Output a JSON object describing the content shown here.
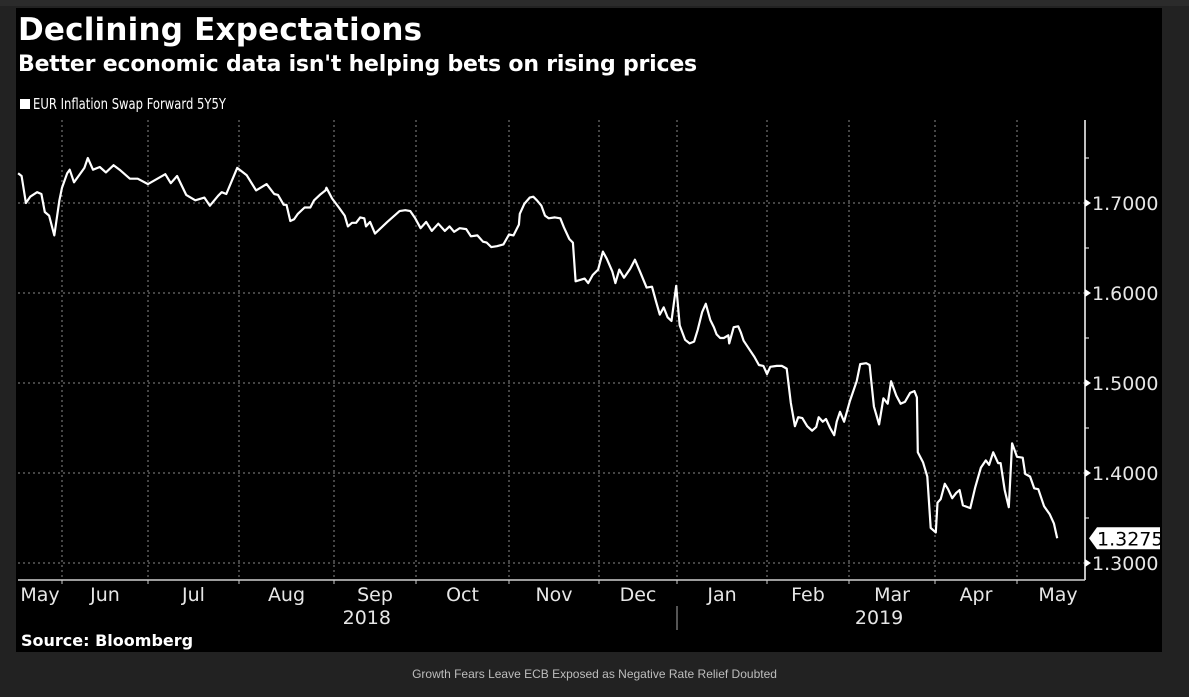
{
  "page": {
    "caption": "Growth Fears Leave ECB Exposed as Negative Rate Relief Doubted",
    "source": "Source: Bloomberg"
  },
  "colors": {
    "background": "#222222",
    "panel": "#000000",
    "line": "#ffffff",
    "grid": "#8a8a8a"
  },
  "chart_data": {
    "type": "line",
    "title": "Declining Expectations",
    "subtitle": "Better economic data isn't helping bets on rising prices",
    "xlabel": "",
    "ylabel": "",
    "legend": {
      "position": "top-left",
      "entries": [
        "EUR Inflation Swap Forward 5Y5Y"
      ]
    },
    "grid": true,
    "ylim": [
      1.28,
      1.79
    ],
    "y_ticks": [
      1.3,
      1.4,
      1.5,
      1.6,
      1.7
    ],
    "y_tick_labels": [
      "1.3000",
      "1.4000",
      "1.5000",
      "1.6000",
      "1.7000"
    ],
    "y_minor_ticks": [
      1.35,
      1.45,
      1.55,
      1.65,
      1.75
    ],
    "x_unit": "months since 2018-06-01",
    "xlim": [
      -0.51,
      11.55
    ],
    "x_month_labels": [
      {
        "label": "May",
        "t": -0.5
      },
      {
        "label": "Jun",
        "t": 0.5
      },
      {
        "label": "Jul",
        "t": 1.5
      },
      {
        "label": "Aug",
        "t": 2.5
      },
      {
        "label": "Sep",
        "t": 3.5
      },
      {
        "label": "Oct",
        "t": 4.5
      },
      {
        "label": "Nov",
        "t": 5.5
      },
      {
        "label": "Dec",
        "t": 6.5
      },
      {
        "label": "Jan",
        "t": 7.5
      },
      {
        "label": "Feb",
        "t": 8.5
      },
      {
        "label": "Mar",
        "t": 9.5
      },
      {
        "label": "Apr",
        "t": 10.5
      },
      {
        "label": "May",
        "t": 11.5
      }
    ],
    "x_month_ticks": [
      0,
      1,
      2,
      3,
      4,
      5,
      6,
      7,
      8,
      9,
      10,
      11
    ],
    "year_labels": [
      {
        "label": "2018",
        "t": 3.4
      },
      {
        "label": "2019",
        "t": 9.35
      }
    ],
    "year_divider_t": 7.0,
    "last_value": 1.3275,
    "last_value_label": "1.3275",
    "series": [
      {
        "name": "EUR Inflation Swap Forward 5Y5Y",
        "points": [
          [
            -0.51,
            1.733
          ],
          [
            -0.47,
            1.73
          ],
          [
            -0.42,
            1.7
          ],
          [
            -0.37,
            1.707
          ],
          [
            -0.29,
            1.712
          ],
          [
            -0.24,
            1.71
          ],
          [
            -0.2,
            1.69
          ],
          [
            -0.15,
            1.686
          ],
          [
            -0.09,
            1.664
          ],
          [
            -0.03,
            1.703
          ],
          [
            0.0,
            1.717
          ],
          [
            0.06,
            1.733
          ],
          [
            0.09,
            1.737
          ],
          [
            0.14,
            1.723
          ],
          [
            0.2,
            1.731
          ],
          [
            0.26,
            1.739
          ],
          [
            0.3,
            1.75
          ],
          [
            0.36,
            1.737
          ],
          [
            0.44,
            1.74
          ],
          [
            0.51,
            1.734
          ],
          [
            0.6,
            1.742
          ],
          [
            0.67,
            1.737
          ],
          [
            0.79,
            1.727
          ],
          [
            0.88,
            1.727
          ],
          [
            1.0,
            1.721
          ],
          [
            1.19,
            1.732
          ],
          [
            1.25,
            1.722
          ],
          [
            1.32,
            1.73
          ],
          [
            1.42,
            1.709
          ],
          [
            1.52,
            1.703
          ],
          [
            1.62,
            1.706
          ],
          [
            1.68,
            1.697
          ],
          [
            1.77,
            1.708
          ],
          [
            1.81,
            1.712
          ],
          [
            1.86,
            1.71
          ],
          [
            1.98,
            1.739
          ],
          [
            2.08,
            1.731
          ],
          [
            2.18,
            1.714
          ],
          [
            2.29,
            1.721
          ],
          [
            2.37,
            1.71
          ],
          [
            2.41,
            1.709
          ],
          [
            2.47,
            1.698
          ],
          [
            2.5,
            1.698
          ],
          [
            2.54,
            1.68
          ],
          [
            2.58,
            1.682
          ],
          [
            2.62,
            1.688
          ],
          [
            2.69,
            1.695
          ],
          [
            2.75,
            1.695
          ],
          [
            2.79,
            1.703
          ],
          [
            2.85,
            1.709
          ],
          [
            2.91,
            1.714
          ],
          [
            2.92,
            1.717
          ],
          [
            2.98,
            1.705
          ],
          [
            3.06,
            1.695
          ],
          [
            3.13,
            1.686
          ],
          [
            3.17,
            1.674
          ],
          [
            3.22,
            1.678
          ],
          [
            3.27,
            1.678
          ],
          [
            3.32,
            1.684
          ],
          [
            3.37,
            1.683
          ],
          [
            3.39,
            1.674
          ],
          [
            3.44,
            1.679
          ],
          [
            3.5,
            1.666
          ],
          [
            3.57,
            1.672
          ],
          [
            3.65,
            1.679
          ],
          [
            3.8,
            1.691
          ],
          [
            3.87,
            1.692
          ],
          [
            3.93,
            1.691
          ],
          [
            3.99,
            1.683
          ],
          [
            4.05,
            1.672
          ],
          [
            4.11,
            1.679
          ],
          [
            4.17,
            1.669
          ],
          [
            4.24,
            1.677
          ],
          [
            4.31,
            1.669
          ],
          [
            4.36,
            1.674
          ],
          [
            4.41,
            1.668
          ],
          [
            4.47,
            1.672
          ],
          [
            4.54,
            1.671
          ],
          [
            4.59,
            1.663
          ],
          [
            4.66,
            1.664
          ],
          [
            4.72,
            1.657
          ],
          [
            4.76,
            1.656
          ],
          [
            4.81,
            1.651
          ],
          [
            4.87,
            1.652
          ],
          [
            4.94,
            1.654
          ],
          [
            5.0,
            1.665
          ],
          [
            5.05,
            1.664
          ],
          [
            5.11,
            1.676
          ],
          [
            5.12,
            1.688
          ],
          [
            5.17,
            1.699
          ],
          [
            5.23,
            1.706
          ],
          [
            5.27,
            1.707
          ],
          [
            5.31,
            1.703
          ],
          [
            5.36,
            1.697
          ],
          [
            5.4,
            1.686
          ],
          [
            5.44,
            1.683
          ],
          [
            5.51,
            1.684
          ],
          [
            5.57,
            1.683
          ],
          [
            5.61,
            1.673
          ],
          [
            5.67,
            1.66
          ],
          [
            5.71,
            1.656
          ],
          [
            5.74,
            1.613
          ],
          [
            5.84,
            1.616
          ],
          [
            5.88,
            1.611
          ],
          [
            5.93,
            1.62
          ],
          [
            5.99,
            1.626
          ],
          [
            6.05,
            1.646
          ],
          [
            6.1,
            1.638
          ],
          [
            6.17,
            1.624
          ],
          [
            6.21,
            1.611
          ],
          [
            6.26,
            1.626
          ],
          [
            6.32,
            1.617
          ],
          [
            6.4,
            1.627
          ],
          [
            6.46,
            1.637
          ],
          [
            6.53,
            1.623
          ],
          [
            6.61,
            1.606
          ],
          [
            6.68,
            1.607
          ],
          [
            6.73,
            1.591
          ],
          [
            6.78,
            1.576
          ],
          [
            6.83,
            1.584
          ],
          [
            6.88,
            1.573
          ],
          [
            6.93,
            1.569
          ],
          [
            6.99,
            1.608
          ],
          [
            7.03,
            1.564
          ],
          [
            7.09,
            1.548
          ],
          [
            7.14,
            1.544
          ],
          [
            7.19,
            1.546
          ],
          [
            7.23,
            1.559
          ],
          [
            7.28,
            1.579
          ],
          [
            7.32,
            1.588
          ],
          [
            7.37,
            1.57
          ],
          [
            7.41,
            1.562
          ],
          [
            7.44,
            1.554
          ],
          [
            7.48,
            1.55
          ],
          [
            7.52,
            1.55
          ],
          [
            7.57,
            1.553
          ],
          [
            7.58,
            1.544
          ],
          [
            7.63,
            1.562
          ],
          [
            7.68,
            1.563
          ],
          [
            7.71,
            1.556
          ],
          [
            7.74,
            1.547
          ],
          [
            7.8,
            1.538
          ],
          [
            7.86,
            1.529
          ],
          [
            7.91,
            1.52
          ],
          [
            7.96,
            1.519
          ],
          [
            8.0,
            1.51
          ],
          [
            8.04,
            1.518
          ],
          [
            8.12,
            1.519
          ],
          [
            8.18,
            1.519
          ],
          [
            8.24,
            1.516
          ],
          [
            8.29,
            1.478
          ],
          [
            8.34,
            1.452
          ],
          [
            8.38,
            1.462
          ],
          [
            8.43,
            1.461
          ],
          [
            8.49,
            1.452
          ],
          [
            8.55,
            1.447
          ],
          [
            8.6,
            1.451
          ],
          [
            8.63,
            1.462
          ],
          [
            8.68,
            1.457
          ],
          [
            8.72,
            1.46
          ],
          [
            8.77,
            1.45
          ],
          [
            8.82,
            1.442
          ],
          [
            8.85,
            1.457
          ],
          [
            8.89,
            1.468
          ],
          [
            8.94,
            1.457
          ],
          [
            9.01,
            1.48
          ],
          [
            9.09,
            1.502
          ],
          [
            9.13,
            1.521
          ],
          [
            9.2,
            1.522
          ],
          [
            9.24,
            1.52
          ],
          [
            9.29,
            1.474
          ],
          [
            9.35,
            1.454
          ],
          [
            9.4,
            1.483
          ],
          [
            9.45,
            1.477
          ],
          [
            9.49,
            1.502
          ],
          [
            9.55,
            1.486
          ],
          [
            9.6,
            1.477
          ],
          [
            9.65,
            1.479
          ],
          [
            9.71,
            1.489
          ],
          [
            9.76,
            1.491
          ],
          [
            9.79,
            1.484
          ],
          [
            9.76,
            1.491
          ],
          [
            9.79,
            1.484
          ],
          [
            9.8,
            1.423
          ],
          [
            9.86,
            1.412
          ],
          [
            9.91,
            1.396
          ],
          [
            9.95,
            1.339
          ],
          [
            10.01,
            1.334
          ],
          [
            10.03,
            1.367
          ],
          [
            10.07,
            1.371
          ],
          [
            10.12,
            1.388
          ],
          [
            10.16,
            1.382
          ],
          [
            10.21,
            1.372
          ],
          [
            10.26,
            1.378
          ],
          [
            10.3,
            1.381
          ],
          [
            10.34,
            1.364
          ],
          [
            10.43,
            1.361
          ],
          [
            10.49,
            1.384
          ],
          [
            10.56,
            1.406
          ],
          [
            10.62,
            1.414
          ],
          [
            10.66,
            1.409
          ],
          [
            10.71,
            1.423
          ],
          [
            10.77,
            1.411
          ],
          [
            10.8,
            1.411
          ],
          [
            10.85,
            1.381
          ],
          [
            10.9,
            1.362
          ],
          [
            10.94,
            1.433
          ],
          [
            11.0,
            1.418
          ],
          [
            11.07,
            1.417
          ],
          [
            11.1,
            1.399
          ],
          [
            11.16,
            1.396
          ],
          [
            11.21,
            1.383
          ],
          [
            11.26,
            1.382
          ],
          [
            11.33,
            1.363
          ],
          [
            11.4,
            1.354
          ],
          [
            11.45,
            1.344
          ],
          [
            11.49,
            1.3275
          ]
        ]
      }
    ]
  }
}
